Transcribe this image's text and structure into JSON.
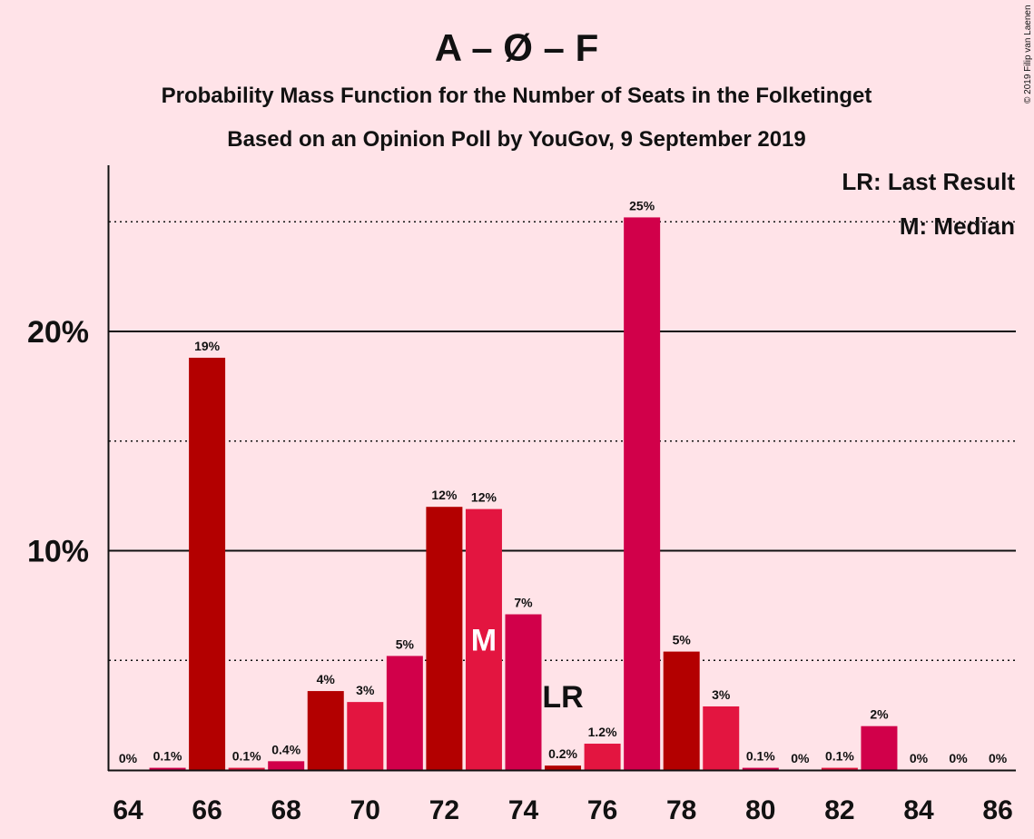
{
  "title": "A – Ø – F",
  "subtitle1": "Probability Mass Function for the Number of Seats in the Folketinget",
  "subtitle2": "Based on an Opinion Poll by YouGov, 9 September 2019",
  "copyright": "© 2019 Filip van Laenen",
  "legend": {
    "lr": "LR: Last Result",
    "median": "M: Median"
  },
  "markers": {
    "median_label": "M",
    "median_seat": 73,
    "lr_label": "LR",
    "lr_seat": 75
  },
  "colors": {
    "background": "#ffe3e8",
    "bar_a": "#e31540",
    "bar_b": "#d1004a",
    "bar_c": "#b30000"
  },
  "chart_data": {
    "type": "bar",
    "x": [
      64,
      65,
      66,
      67,
      68,
      69,
      70,
      71,
      72,
      73,
      74,
      75,
      76,
      77,
      78,
      79,
      80,
      81,
      82,
      83,
      84,
      85,
      86
    ],
    "values": [
      0,
      0.1,
      18.8,
      0.1,
      0.4,
      3.6,
      3.1,
      5.2,
      12.0,
      11.9,
      7.1,
      0.2,
      1.2,
      25.2,
      5.4,
      2.9,
      0.1,
      0,
      0.1,
      2.0,
      0,
      0,
      0
    ],
    "labels": [
      "0%",
      "0.1%",
      "19%",
      "0.1%",
      "0.4%",
      "4%",
      "3%",
      "5%",
      "12%",
      "12%",
      "7%",
      "0.2%",
      "1.2%",
      "25%",
      "5%",
      "3%",
      "0.1%",
      "0%",
      "0.1%",
      "2%",
      "0%",
      "0%",
      "0%"
    ],
    "x_ticks": [
      "64",
      "66",
      "68",
      "70",
      "72",
      "74",
      "76",
      "78",
      "80",
      "82",
      "84",
      "86"
    ],
    "y_ticks": [
      "10%",
      "20%"
    ],
    "ylim": [
      0,
      27.5
    ],
    "grid": "solid lines at 10% and 20%, dotted lines at 5%, 15% and 25%",
    "legend_position": "top-right"
  }
}
